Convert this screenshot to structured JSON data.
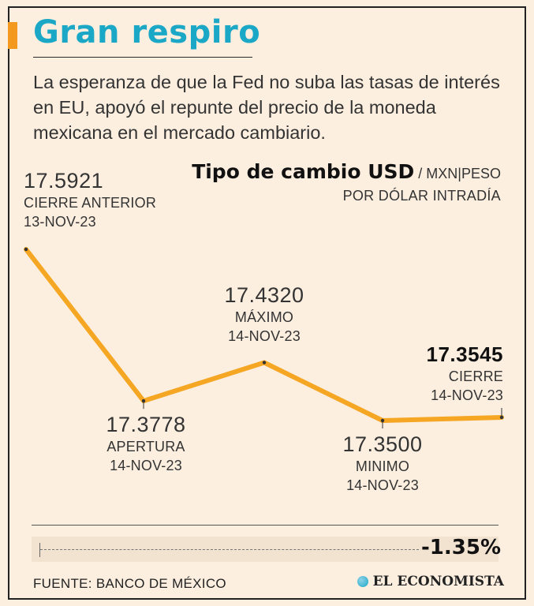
{
  "header": {
    "title": "Gran respiro",
    "subtitle": "La esperanza de que la Fed no suba las tasas de interés en EU, apoyó el repunte del precio de la moneda mexicana en el mercado cambiario."
  },
  "chart_data": {
    "type": "line",
    "title": "Tipo de cambio USD",
    "subtitle": "/ MXN|PESO",
    "unit": "POR DÓLAR INTRADÍA",
    "x": [
      "CIERRE ANTERIOR",
      "APERTURA",
      "MÁXIMO",
      "MINIMO",
      "CIERRE"
    ],
    "points": [
      {
        "value": "17.5921",
        "y": 17.5921,
        "name": "CIERRE ANTERIOR",
        "date": "13-NOV-23"
      },
      {
        "value": "17.3778",
        "y": 17.3778,
        "name": "APERTURA",
        "date": "14-NOV-23"
      },
      {
        "value": "17.4320",
        "y": 17.432,
        "name": "MÁXIMO",
        "date": "14-NOV-23"
      },
      {
        "value": "17.3500",
        "y": 17.35,
        "name": "MINIMO",
        "date": "14-NOV-23"
      },
      {
        "value": "17.3545",
        "y": 17.3545,
        "name": "CIERRE",
        "date": "14-NOV-23"
      }
    ],
    "ylim": [
      17.35,
      17.5921
    ],
    "grid": false,
    "line_color": "#f5a623"
  },
  "change": "-1.35%",
  "footer": {
    "source": "FUENTE: BANCO DE MÉXICO",
    "brand": "EL ECONOMISTA"
  },
  "colors": {
    "title": "#1ba7c6",
    "accent": "#f39a1e",
    "background": "#fcefe0"
  }
}
